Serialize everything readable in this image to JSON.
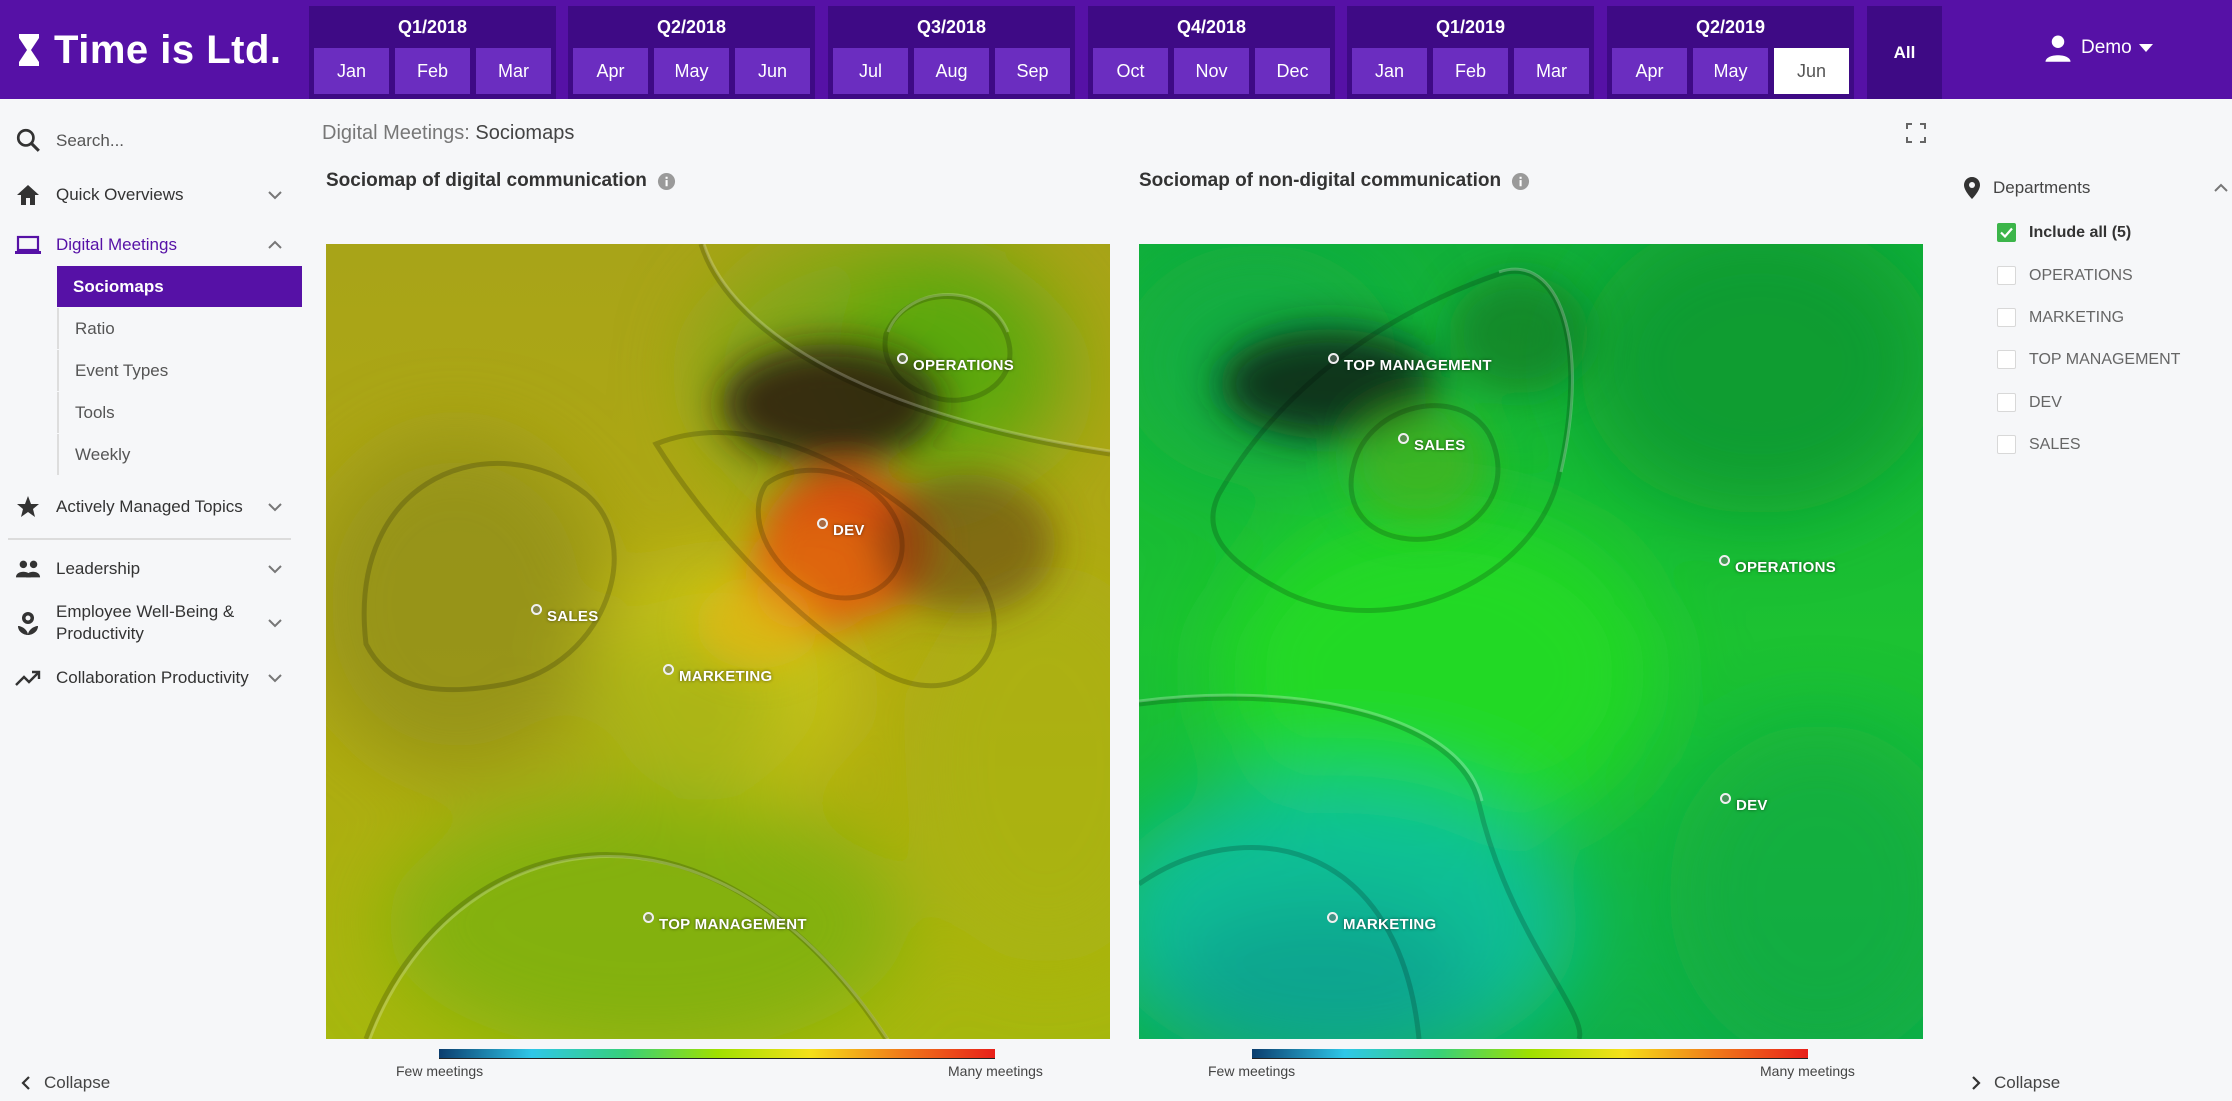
{
  "app": {
    "logo_text": "Time is Ltd.",
    "user_name": "Demo"
  },
  "periods": [
    {
      "label": "Q1/2018",
      "months": [
        "Jan",
        "Feb",
        "Mar"
      ]
    },
    {
      "label": "Q2/2018",
      "months": [
        "Apr",
        "May",
        "Jun"
      ]
    },
    {
      "label": "Q3/2018",
      "months": [
        "Jul",
        "Aug",
        "Sep"
      ]
    },
    {
      "label": "Q4/2018",
      "months": [
        "Oct",
        "Nov",
        "Dec"
      ]
    },
    {
      "label": "Q1/2019",
      "months": [
        "Jan",
        "Feb",
        "Mar"
      ]
    },
    {
      "label": "Q2/2019",
      "months": [
        "Apr",
        "May",
        "Jun"
      ]
    }
  ],
  "active_period": "Q2/2019 Jun",
  "all_label": "All",
  "sidebar": {
    "search_placeholder": "Search...",
    "items": [
      {
        "label": "Quick Overviews"
      },
      {
        "label": "Digital Meetings"
      },
      {
        "label": "Actively Managed Topics"
      },
      {
        "label": "Leadership"
      },
      {
        "label": "Employee Well-Being &",
        "label2": "Productivity"
      },
      {
        "label": "Collaboration Productivity"
      }
    ],
    "subitems": [
      "Sociomaps",
      "Ratio",
      "Event Types",
      "Tools",
      "Weekly"
    ],
    "collapse_label": "Collapse"
  },
  "breadcrumb": {
    "parent": "Digital Meetings:",
    "current": "Sociomaps"
  },
  "maps": [
    {
      "title": "Sociomap of digital communication",
      "points": [
        "OPERATIONS",
        "DEV",
        "SALES",
        "MARKETING",
        "TOP MANAGEMENT"
      ],
      "legend_low": "Few meetings",
      "legend_high": "Many meetings"
    },
    {
      "title": "Sociomap of non-digital communication",
      "points": [
        "TOP MANAGEMENT",
        "SALES",
        "OPERATIONS",
        "DEV",
        "MARKETING"
      ],
      "legend_low": "Few meetings",
      "legend_high": "Many meetings"
    }
  ],
  "departments": {
    "header": "Departments",
    "items": [
      {
        "label": "Include all (5)",
        "checked": true
      },
      {
        "label": "OPERATIONS",
        "checked": false
      },
      {
        "label": "MARKETING",
        "checked": false
      },
      {
        "label": "TOP MANAGEMENT",
        "checked": false
      },
      {
        "label": "DEV",
        "checked": false
      },
      {
        "label": "SALES",
        "checked": false
      }
    ],
    "collapse_label": "Collapse"
  },
  "colors": {
    "brand": "#5611a6",
    "brand_dark": "#3e0a85",
    "check": "#3cb54a"
  }
}
